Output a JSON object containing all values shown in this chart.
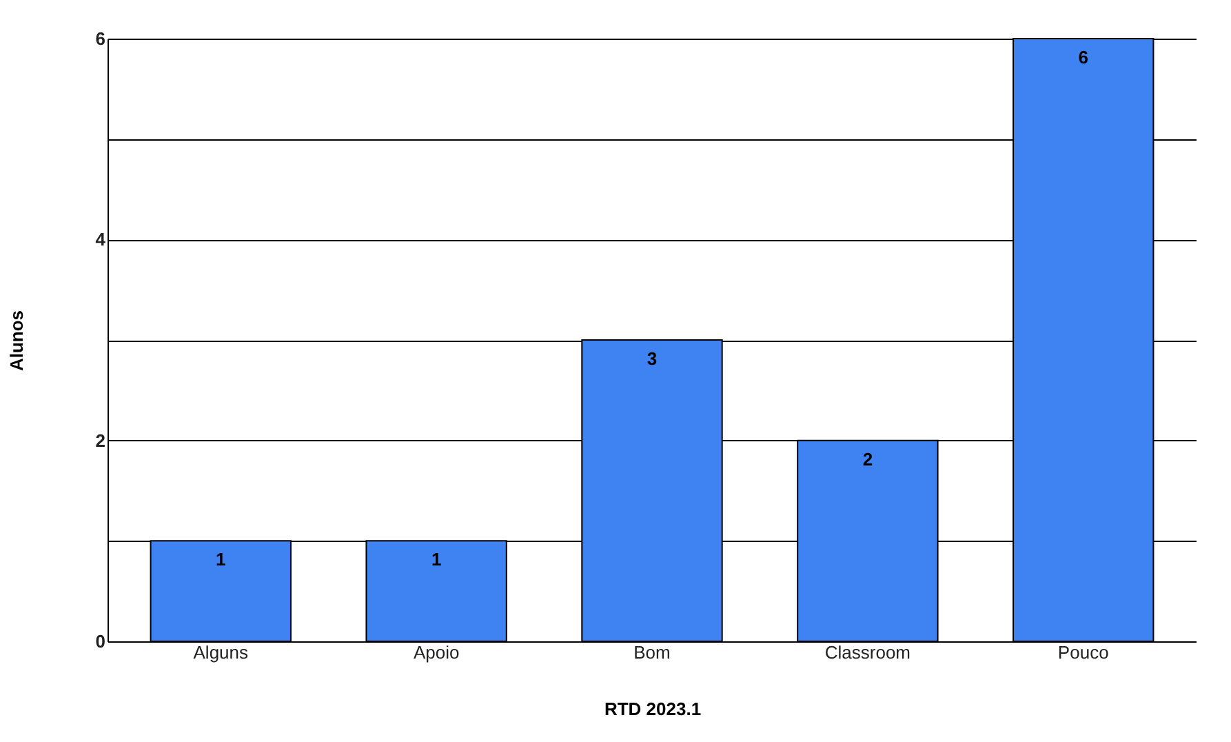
{
  "chart_data": {
    "type": "bar",
    "xlabel": "RTD 2023.1",
    "ylabel": "Alunos",
    "categories": [
      "Alguns",
      "Apoio",
      "Bom",
      "Classroom",
      "Pouco"
    ],
    "values": [
      1,
      1,
      3,
      2,
      6
    ],
    "color": "#3f83f2",
    "ylim": [
      0,
      6
    ],
    "yticks": [
      0,
      {
        "value": 1,
        "label": null
      },
      2,
      {
        "value": 3,
        "label": null
      },
      4,
      {
        "value": 5,
        "label": null
      },
      6
    ],
    "grid": "y",
    "data_labels": true
  }
}
